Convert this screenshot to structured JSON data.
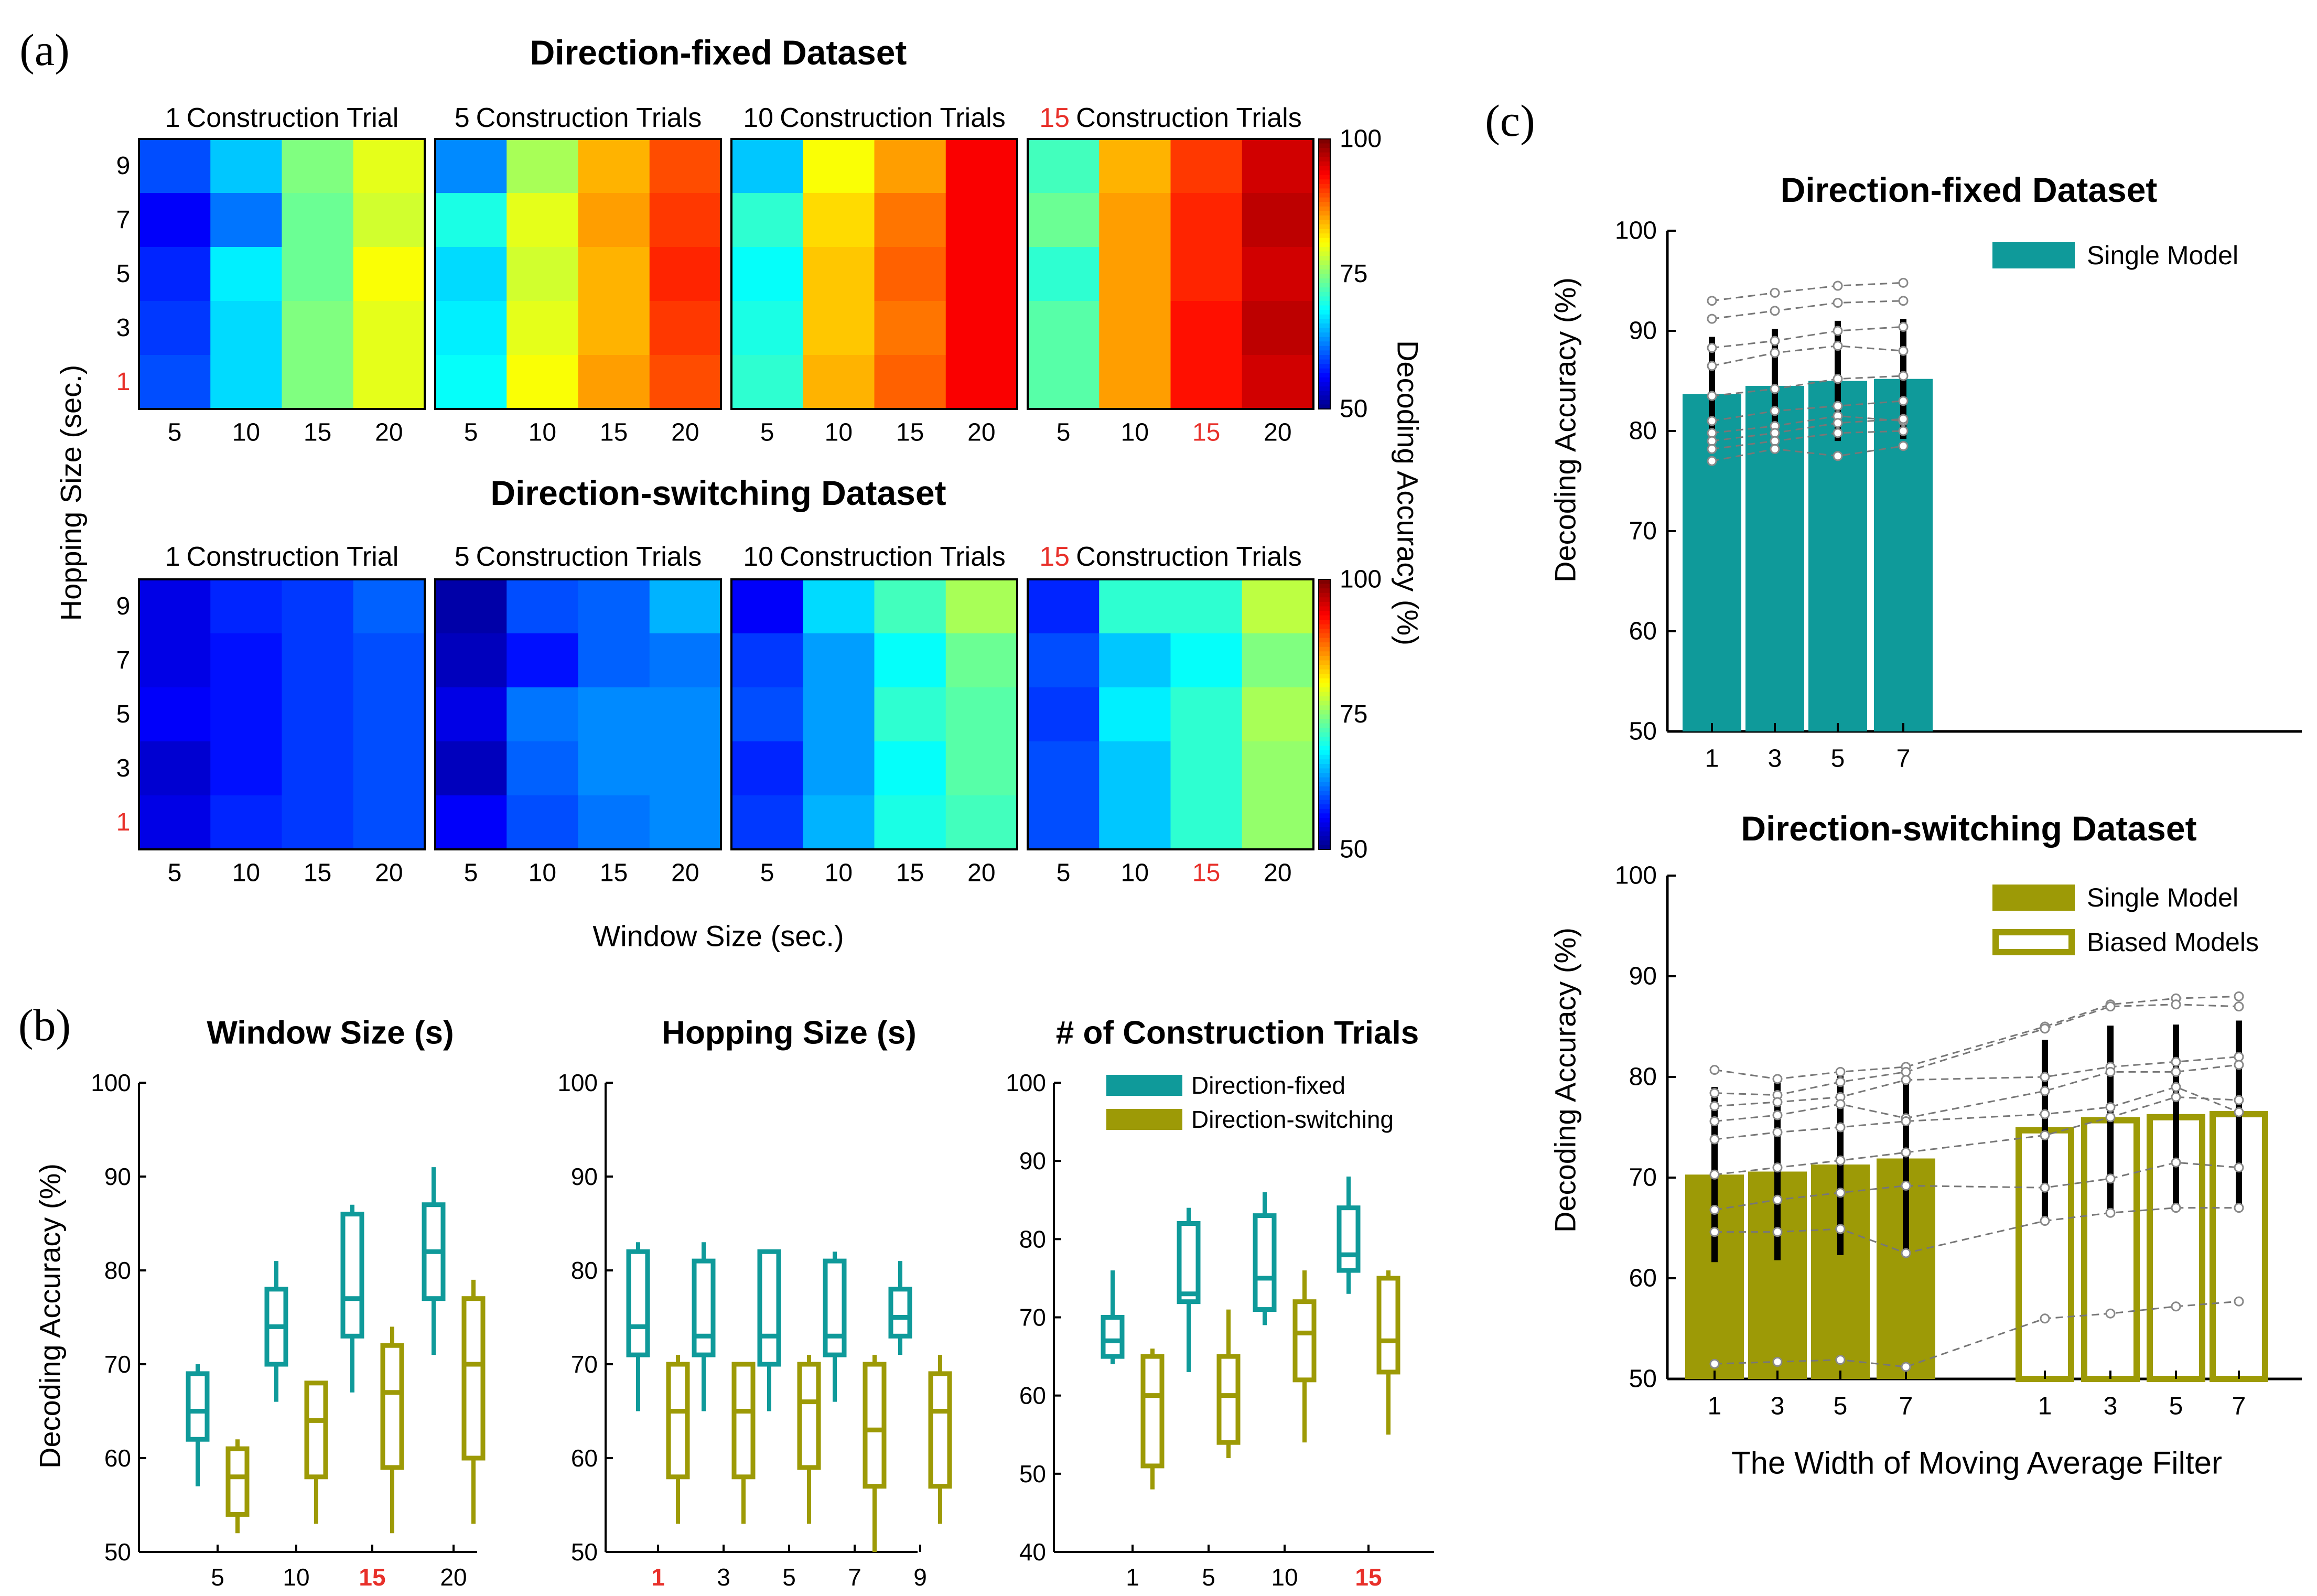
{
  "colors": {
    "fixed": "#0f9a9a",
    "switching": "#9d9a06",
    "red": "#e8302a",
    "axis": "#000000",
    "dashed": "#777777",
    "errorbar": "#000000"
  },
  "panel_labels": [
    "(a)",
    "(b)",
    "(c)"
  ],
  "chart_data": [
    {
      "id": "a",
      "type": "heatmap",
      "datasets": [
        {
          "title": "Direction-fixed Dataset",
          "subplots": [
            {
              "label_num": "1",
              "label_rest": "Construction Trial",
              "num_red": false,
              "x15_red": false,
              "values": [
                [
                  60,
                  66,
                  75,
                  80
                ],
                [
                  56,
                  62,
                  74,
                  79
                ],
                [
                  58,
                  68,
                  74,
                  81
                ],
                [
                  59,
                  67,
                  75,
                  80
                ],
                [
                  60,
                  67,
                  75,
                  80
                ]
              ]
            },
            {
              "label_num": "5",
              "label_rest": "Construction Trials",
              "num_red": false,
              "x15_red": false,
              "values": [
                [
                  63,
                  77,
                  85,
                  90
                ],
                [
                  70,
                  80,
                  86,
                  91
                ],
                [
                  67,
                  79,
                  85,
                  92
                ],
                [
                  68,
                  80,
                  85,
                  91
                ],
                [
                  69,
                  81,
                  86,
                  90
                ]
              ]
            },
            {
              "label_num": "10",
              "label_rest": "Construction Trials",
              "num_red": false,
              "x15_red": false,
              "values": [
                [
                  66,
                  81,
                  86,
                  94
                ],
                [
                  71,
                  83,
                  88,
                  94
                ],
                [
                  69,
                  84,
                  89,
                  94
                ],
                [
                  70,
                  84,
                  88,
                  94
                ],
                [
                  71,
                  85,
                  89,
                  94
                ]
              ]
            },
            {
              "label_num": "15",
              "label_rest": "Construction Trials",
              "num_red": true,
              "x15_red": true,
              "values": [
                [
                  72,
                  85,
                  91,
                  96
                ],
                [
                  74,
                  86,
                  92,
                  97
                ],
                [
                  71,
                  86,
                  92,
                  96
                ],
                [
                  73,
                  86,
                  93,
                  97
                ],
                [
                  73,
                  86,
                  93,
                  96
                ]
              ]
            }
          ]
        },
        {
          "title": "Direction-switching Dataset",
          "subplots": [
            {
              "label_num": "1",
              "label_rest": "Construction Trial",
              "num_red": false,
              "x15_red": false,
              "values": [
                [
                  55,
                  58,
                  59,
                  61
                ],
                [
                  55,
                  57,
                  59,
                  60
                ],
                [
                  56,
                  57,
                  59,
                  60
                ],
                [
                  54,
                  57,
                  59,
                  60
                ],
                [
                  55,
                  58,
                  59,
                  60
                ]
              ]
            },
            {
              "label_num": "5",
              "label_rest": "Construction Trials",
              "num_red": false,
              "x15_red": false,
              "values": [
                [
                  52,
                  60,
                  61,
                  65
                ],
                [
                  53,
                  57,
                  61,
                  62
                ],
                [
                  55,
                  62,
                  63,
                  63
                ],
                [
                  53,
                  61,
                  63,
                  63
                ],
                [
                  56,
                  60,
                  62,
                  63
                ]
              ]
            },
            {
              "label_num": "10",
              "label_rest": "Construction Trials",
              "num_red": false,
              "x15_red": false,
              "values": [
                [
                  56,
                  67,
                  72,
                  77
                ],
                [
                  59,
                  64,
                  69,
                  74
                ],
                [
                  60,
                  64,
                  71,
                  73
                ],
                [
                  58,
                  64,
                  69,
                  73
                ],
                [
                  59,
                  65,
                  70,
                  72
                ]
              ]
            },
            {
              "label_num": "15",
              "label_rest": "Construction Trials",
              "num_red": true,
              "x15_red": true,
              "values": [
                [
                  58,
                  71,
                  71,
                  78
                ],
                [
                  60,
                  66,
                  69,
                  75
                ],
                [
                  59,
                  68,
                  71,
                  77
                ],
                [
                  60,
                  66,
                  71,
                  76
                ],
                [
                  60,
                  66,
                  71,
                  76
                ]
              ]
            }
          ]
        }
      ],
      "rows": [
        "9",
        "7",
        "5",
        "3",
        "1"
      ],
      "cols": [
        "5",
        "10",
        "15",
        "20"
      ],
      "ylabel": "Hopping Size (sec.)",
      "xlabel": "Window Size (sec.)",
      "colorbar": {
        "min": 50,
        "max": 100,
        "ticks": [
          "100",
          "75",
          "50"
        ],
        "label": "Decoding Accuracy (%)"
      }
    },
    {
      "id": "b",
      "type": "box",
      "ylabel": "Decoding Accuracy (%)",
      "legend": [
        "Direction-fixed",
        "Direction-switching"
      ],
      "plots": [
        {
          "title": "Window Size (s)",
          "ylim": [
            50,
            100
          ],
          "yticks": [
            "100",
            "90",
            "80",
            "70",
            "60",
            "50"
          ],
          "categories": [
            "5",
            "10",
            "15",
            "20"
          ],
          "red_category": "15",
          "fixed": [
            [
              57,
              62,
              65,
              69,
              70
            ],
            [
              66,
              70,
              74,
              78,
              81
            ],
            [
              67,
              73,
              77,
              86,
              87
            ],
            [
              71,
              77,
              82,
              87,
              91
            ]
          ],
          "switching": [
            [
              52,
              54,
              58,
              61,
              62
            ],
            [
              53,
              58,
              64,
              68,
              68
            ],
            [
              52,
              59,
              67,
              72,
              74
            ],
            [
              53,
              60,
              70,
              77,
              79
            ]
          ]
        },
        {
          "title": "Hopping Size (s)",
          "ylim": [
            50,
            100
          ],
          "yticks": [
            "100",
            "90",
            "80",
            "70",
            "60",
            "50"
          ],
          "categories": [
            "1",
            "3",
            "5",
            "7",
            "9"
          ],
          "red_category": "1",
          "fixed": [
            [
              65,
              71,
              74,
              82,
              83
            ],
            [
              65,
              71,
              73,
              81,
              83
            ],
            [
              65,
              70,
              73,
              82,
              82
            ],
            [
              66,
              71,
              73,
              81,
              82
            ],
            [
              71,
              73,
              75,
              78,
              81
            ]
          ],
          "switching": [
            [
              53,
              58,
              65,
              70,
              71
            ],
            [
              53,
              58,
              65,
              70,
              70
            ],
            [
              53,
              59,
              66,
              70,
              71
            ],
            [
              50,
              57,
              63,
              70,
              71
            ],
            [
              53,
              57,
              65,
              69,
              71
            ]
          ]
        },
        {
          "title": "# of Construction Trials",
          "ylim": [
            40,
            100
          ],
          "yticks": [
            "100",
            "90",
            "80",
            "70",
            "60",
            "50",
            "40"
          ],
          "categories": [
            "1",
            "5",
            "10",
            "15"
          ],
          "red_category": "15",
          "fixed": [
            [
              64,
              65,
              67,
              70,
              76
            ],
            [
              63,
              72,
              73,
              82,
              84
            ],
            [
              69,
              71,
              75,
              83,
              86
            ],
            [
              73,
              76,
              78,
              84,
              88
            ]
          ],
          "switching": [
            [
              48,
              51,
              60,
              65,
              66
            ],
            [
              52,
              54,
              60,
              65,
              71
            ],
            [
              54,
              62,
              68,
              72,
              76
            ],
            [
              55,
              63,
              67,
              75,
              76
            ]
          ]
        }
      ]
    },
    {
      "id": "c",
      "type": "bar",
      "ylabel": "Decoding Accuracy (%)",
      "xlabel": "The Width of Moving Average Filter",
      "top": {
        "title": "Direction-fixed Dataset",
        "legend": [
          "Single  Model"
        ],
        "ylim": [
          50,
          100
        ],
        "yticks": [
          "100",
          "90",
          "80",
          "70",
          "60",
          "50"
        ],
        "categories": [
          "1",
          "3",
          "5",
          "7"
        ],
        "values": [
          83.7,
          84.5,
          85.0,
          85.2
        ],
        "err_low": [
          78.0,
          78.8,
          79.0,
          79.2
        ],
        "err_high": [
          89.4,
          90.2,
          91.0,
          91.2
        ],
        "subjects": [
          [
            93.0,
            93.8,
            94.5,
            94.8
          ],
          [
            91.2,
            92.0,
            92.8,
            93.0
          ],
          [
            88.3,
            89.0,
            90.0,
            90.4
          ],
          [
            86.5,
            87.8,
            88.5,
            88.0
          ],
          [
            83.5,
            84.2,
            85.2,
            85.5
          ],
          [
            81.0,
            82.0,
            82.5,
            83.0
          ],
          [
            79.8,
            80.5,
            81.5,
            81.0
          ],
          [
            79.0,
            79.8,
            80.8,
            81.2
          ],
          [
            78.2,
            79.0,
            79.8,
            80.0
          ],
          [
            77.0,
            78.2,
            77.5,
            78.5
          ]
        ]
      },
      "bottom": {
        "title": "Direction-switching Dataset",
        "legend": [
          "Single  Model",
          "Biased Models"
        ],
        "ylim": [
          50,
          100
        ],
        "yticks": [
          "100",
          "90",
          "80",
          "70",
          "60",
          "50"
        ],
        "categories": [
          "1",
          "3",
          "5",
          "7",
          "1",
          "3",
          "5",
          "7"
        ],
        "values": [
          70.3,
          70.6,
          71.3,
          71.9,
          74.7,
          75.7,
          76.0,
          76.3
        ],
        "err_low": [
          61.6,
          61.8,
          62.3,
          62.8,
          65.7,
          66.3,
          66.8,
          67.0
        ],
        "err_high": [
          79.0,
          79.4,
          80.3,
          81.0,
          83.7,
          85.1,
          85.2,
          85.6
        ],
        "subjects": [
          [
            80.7,
            79.8,
            80.5,
            81.0,
            85.0,
            87.2,
            87.8,
            88.0
          ],
          [
            78.4,
            78.2,
            79.5,
            80.5,
            84.8,
            87.0,
            87.2,
            87.0
          ],
          [
            77.1,
            77.5,
            78.0,
            79.7,
            80.0,
            81.0,
            81.5,
            82.0
          ],
          [
            75.6,
            76.2,
            77.3,
            75.9,
            78.6,
            80.5,
            80.5,
            81.2
          ],
          [
            73.8,
            74.5,
            75.0,
            75.6,
            76.3,
            77.0,
            79.0,
            76.5
          ],
          [
            70.3,
            71.0,
            71.7,
            72.5,
            74.2,
            76.0,
            78.0,
            77.7
          ],
          [
            66.8,
            67.8,
            68.5,
            69.2,
            69.0,
            69.9,
            71.5,
            71.0
          ],
          [
            64.6,
            64.6,
            64.9,
            62.5,
            65.7,
            66.5,
            67.0,
            67.0
          ],
          [
            51.5,
            51.7,
            51.9,
            51.2,
            56.0,
            56.5,
            57.2,
            57.7
          ]
        ]
      }
    }
  ]
}
